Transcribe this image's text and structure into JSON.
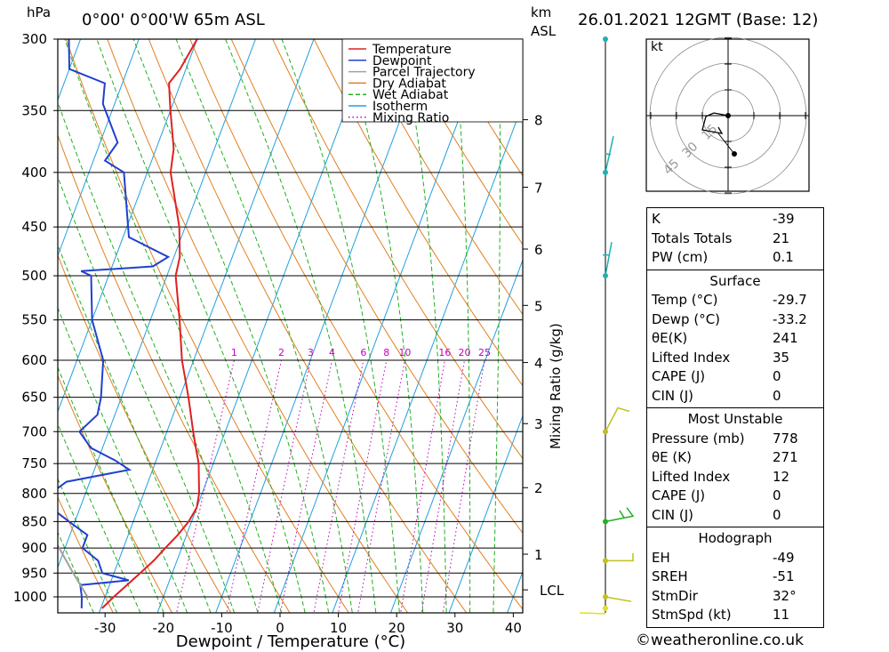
{
  "header": {
    "hpa_label": "hPa",
    "location": "0°00' 0°00'W 65m ASL",
    "km_label": "km",
    "asl_label": "ASL",
    "datetime": "26.01.2021 12GMT (Base: 12)"
  },
  "legend": [
    {
      "label": "Temperature",
      "color": "#e02020",
      "style": "solid"
    },
    {
      "label": "Dewpoint",
      "color": "#2040d0",
      "style": "solid"
    },
    {
      "label": "Parcel Trajectory",
      "color": "#a0a0a0",
      "style": "solid"
    },
    {
      "label": "Dry Adiabat",
      "color": "#e08020",
      "style": "solid"
    },
    {
      "label": "Wet Adiabat",
      "color": "#20b020",
      "style": "dashed"
    },
    {
      "label": "Isotherm",
      "color": "#20a0e0",
      "style": "solid"
    },
    {
      "label": "Mixing Ratio",
      "color": "#c000c0",
      "style": "dotted"
    }
  ],
  "chart_data": {
    "type": "line",
    "xlabel": "Dewpoint / Temperature (°C)",
    "pressure_ticks": [
      300,
      350,
      400,
      450,
      500,
      550,
      600,
      650,
      700,
      750,
      800,
      850,
      900,
      950,
      1000
    ],
    "x_ticks": [
      -30,
      -20,
      -10,
      0,
      10,
      20,
      30,
      40
    ],
    "km_ticks": [
      "8",
      "7",
      "6",
      "5",
      "4",
      "3",
      "2",
      "1"
    ],
    "lcl_label": "LCL",
    "mixing_ratio_axis_label": "Mixing Ratio (g/kg)",
    "mixing_ratio_labels": [
      "1",
      "2",
      "3",
      "4",
      "6",
      "8",
      "10",
      "16",
      "20",
      "25"
    ],
    "series": [
      {
        "name": "Temperature",
        "points": [
          [
            1028,
            -29.7
          ],
          [
            1000,
            -28.5
          ],
          [
            975,
            -27
          ],
          [
            950,
            -25.5
          ],
          [
            925,
            -24
          ],
          [
            900,
            -22.8
          ],
          [
            875,
            -21.5
          ],
          [
            850,
            -20.5
          ],
          [
            825,
            -20
          ],
          [
            800,
            -20.5
          ],
          [
            775,
            -21.5
          ],
          [
            750,
            -22.5
          ],
          [
            725,
            -24
          ],
          [
            700,
            -25.5
          ],
          [
            650,
            -28.5
          ],
          [
            600,
            -32
          ],
          [
            550,
            -35
          ],
          [
            500,
            -38.5
          ],
          [
            480,
            -39
          ],
          [
            450,
            -41
          ],
          [
            400,
            -46
          ],
          [
            380,
            -47
          ],
          [
            350,
            -50
          ],
          [
            330,
            -52
          ],
          [
            320,
            -51
          ],
          [
            300,
            -50
          ]
        ]
      },
      {
        "name": "Dewpoint",
        "points": [
          [
            1028,
            -33.2
          ],
          [
            1000,
            -34
          ],
          [
            975,
            -35
          ],
          [
            965,
            -27
          ],
          [
            950,
            -32
          ],
          [
            925,
            -33.5
          ],
          [
            900,
            -37
          ],
          [
            875,
            -37
          ],
          [
            850,
            -41
          ],
          [
            825,
            -45
          ],
          [
            800,
            -46
          ],
          [
            780,
            -44
          ],
          [
            760,
            -34
          ],
          [
            745,
            -37
          ],
          [
            725,
            -42
          ],
          [
            700,
            -45
          ],
          [
            675,
            -43
          ],
          [
            650,
            -43.5
          ],
          [
            600,
            -45.5
          ],
          [
            550,
            -50
          ],
          [
            500,
            -53
          ],
          [
            495,
            -55
          ],
          [
            490,
            -43
          ],
          [
            480,
            -41
          ],
          [
            460,
            -49
          ],
          [
            400,
            -54
          ],
          [
            390,
            -58
          ],
          [
            375,
            -57
          ],
          [
            345,
            -62
          ],
          [
            330,
            -63
          ],
          [
            320,
            -70
          ],
          [
            300,
            -72
          ]
        ]
      },
      {
        "name": "Parcel Trajectory",
        "points": [
          [
            1000,
            -33
          ],
          [
            950,
            -37
          ],
          [
            900,
            -41
          ],
          [
            850,
            -45.5
          ],
          [
            800,
            -50
          ]
        ]
      }
    ]
  },
  "hodograph": {
    "unit_label": "kt",
    "ring_labels": [
      "45",
      "30",
      "15"
    ]
  },
  "indices": [
    {
      "label": "K",
      "value": "-39"
    },
    {
      "label": "Totals Totals",
      "value": "21"
    },
    {
      "label": "PW (cm)",
      "value": "0.1"
    }
  ],
  "surface": {
    "title": "Surface",
    "rows": [
      {
        "label": "Temp (°C)",
        "value": "-29.7"
      },
      {
        "label": "Dewp (°C)",
        "value": "-33.2"
      },
      {
        "label": "θE(K)",
        "value": "241"
      },
      {
        "label": "Lifted Index",
        "value": "35"
      },
      {
        "label": "CAPE (J)",
        "value": "0"
      },
      {
        "label": "CIN (J)",
        "value": "0"
      }
    ]
  },
  "most_unstable": {
    "title": "Most Unstable",
    "rows": [
      {
        "label": "Pressure (mb)",
        "value": "778"
      },
      {
        "label": "θE (K)",
        "value": "271"
      },
      {
        "label": "Lifted Index",
        "value": "12"
      },
      {
        "label": "CAPE (J)",
        "value": "0"
      },
      {
        "label": "CIN (J)",
        "value": "0"
      }
    ]
  },
  "hodograph_table": {
    "title": "Hodograph",
    "rows": [
      {
        "label": "EH",
        "value": "-49"
      },
      {
        "label": "SREH",
        "value": "-51"
      },
      {
        "label": "StmDir",
        "value": "32°"
      },
      {
        "label": "StmSpd (kt)",
        "value": "11"
      }
    ]
  },
  "footer": {
    "copyright": "©weatheronline.co.uk"
  }
}
